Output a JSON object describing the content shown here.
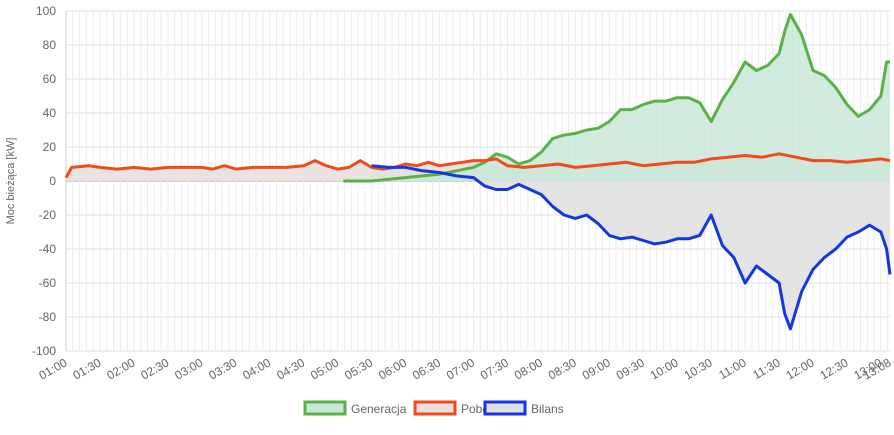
{
  "chart_data": {
    "type": "area",
    "ylabel": "Moc bieżąca [kW]",
    "ylim": [
      -100,
      100
    ],
    "yticks": [
      100,
      80,
      60,
      40,
      20,
      0,
      -20,
      -40,
      -60,
      -80,
      -100
    ],
    "x_range": [
      "01:00",
      "13:08"
    ],
    "xticks": [
      "01:00",
      "01:30",
      "02:00",
      "02:30",
      "03:00",
      "03:30",
      "04:00",
      "04:30",
      "05:00",
      "05:30",
      "06:00",
      "06:30",
      "07:00",
      "07:30",
      "08:00",
      "08:30",
      "09:00",
      "09:30",
      "10:00",
      "10:30",
      "11:00",
      "11:30",
      "12:00",
      "12:30",
      "13:00",
      "13:08"
    ],
    "grid": true,
    "legend_position": "bottom",
    "series": [
      {
        "name": "Generacja",
        "color": "#5ab146",
        "fill": "#c9e8d9",
        "x": [
          "05:05",
          "05:30",
          "05:45",
          "06:00",
          "06:15",
          "06:30",
          "06:45",
          "07:00",
          "07:10",
          "07:20",
          "07:30",
          "07:40",
          "07:50",
          "08:00",
          "08:10",
          "08:20",
          "08:30",
          "08:40",
          "08:50",
          "09:00",
          "09:10",
          "09:20",
          "09:30",
          "09:40",
          "09:50",
          "10:00",
          "10:10",
          "10:20",
          "10:30",
          "10:40",
          "10:50",
          "11:00",
          "11:10",
          "11:20",
          "11:30",
          "11:35",
          "11:40",
          "11:50",
          "12:00",
          "12:10",
          "12:20",
          "12:30",
          "12:40",
          "12:50",
          "13:00",
          "13:05",
          "13:08"
        ],
        "values": [
          0,
          0,
          1,
          2,
          3,
          4,
          6,
          8,
          11,
          16,
          14,
          10,
          12,
          17,
          25,
          27,
          28,
          30,
          31,
          35,
          42,
          42,
          45,
          47,
          47,
          49,
          49,
          46,
          35,
          48,
          58,
          70,
          65,
          68,
          75,
          88,
          98,
          86,
          65,
          62,
          55,
          45,
          38,
          42,
          50,
          70,
          70
        ]
      },
      {
        "name": "Pobór",
        "color": "#f04a1d",
        "fill": "#e8e0df",
        "x": [
          "01:00",
          "01:05",
          "01:20",
          "01:30",
          "01:45",
          "02:00",
          "02:15",
          "02:30",
          "02:45",
          "03:00",
          "03:10",
          "03:20",
          "03:30",
          "03:45",
          "04:00",
          "04:15",
          "04:30",
          "04:40",
          "04:50",
          "05:00",
          "05:10",
          "05:20",
          "05:30",
          "05:40",
          "05:50",
          "06:00",
          "06:10",
          "06:20",
          "06:30",
          "06:40",
          "06:50",
          "07:00",
          "07:10",
          "07:20",
          "07:30",
          "07:45",
          "08:00",
          "08:15",
          "08:30",
          "08:45",
          "09:00",
          "09:15",
          "09:30",
          "09:45",
          "10:00",
          "10:15",
          "10:30",
          "10:45",
          "11:00",
          "11:15",
          "11:30",
          "11:45",
          "12:00",
          "12:15",
          "12:30",
          "12:45",
          "13:00",
          "13:08"
        ],
        "values": [
          2,
          8,
          9,
          8,
          7,
          8,
          7,
          8,
          8,
          8,
          7,
          9,
          7,
          8,
          8,
          8,
          9,
          12,
          9,
          7,
          8,
          12,
          8,
          7,
          8,
          10,
          9,
          11,
          9,
          10,
          11,
          12,
          12,
          13,
          9,
          8,
          9,
          10,
          8,
          9,
          10,
          11,
          9,
          10,
          11,
          11,
          13,
          14,
          15,
          14,
          16,
          14,
          12,
          12,
          11,
          12,
          13,
          12
        ]
      },
      {
        "name": "Bilans",
        "color": "#1637e0",
        "fill": "#e1e1e1",
        "x": [
          "05:30",
          "05:45",
          "06:00",
          "06:15",
          "06:30",
          "06:45",
          "07:00",
          "07:10",
          "07:20",
          "07:30",
          "07:40",
          "07:50",
          "08:00",
          "08:10",
          "08:20",
          "08:30",
          "08:40",
          "08:50",
          "09:00",
          "09:10",
          "09:20",
          "09:30",
          "09:40",
          "09:50",
          "10:00",
          "10:10",
          "10:20",
          "10:30",
          "10:40",
          "10:50",
          "11:00",
          "11:10",
          "11:20",
          "11:30",
          "11:35",
          "11:40",
          "11:50",
          "12:00",
          "12:10",
          "12:20",
          "12:30",
          "12:40",
          "12:50",
          "13:00",
          "13:05",
          "13:08"
        ],
        "values": [
          9,
          8,
          8,
          6,
          5,
          3,
          2,
          -3,
          -5,
          -5,
          -2,
          -5,
          -8,
          -15,
          -20,
          -22,
          -20,
          -25,
          -32,
          -34,
          -33,
          -35,
          -37,
          -36,
          -34,
          -34,
          -32,
          -20,
          -38,
          -45,
          -60,
          -50,
          -55,
          -60,
          -78,
          -87,
          -65,
          -52,
          -45,
          -40,
          -33,
          -30,
          -26,
          -30,
          -40,
          -55
        ]
      }
    ]
  }
}
